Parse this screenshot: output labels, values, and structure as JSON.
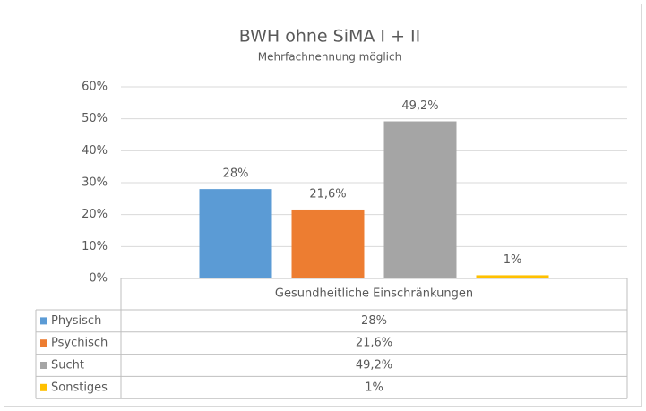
{
  "chart_data": {
    "type": "bar",
    "title": "BWH ohne SiMA I + II",
    "subtitle": "Mehrfachnennung möglich",
    "categories": [
      "Gesundheitliche Einschränkungen"
    ],
    "series": [
      {
        "name": "Physisch",
        "color": "#5b9bd5",
        "values": [
          28
        ],
        "value_labels": [
          "28%"
        ]
      },
      {
        "name": "Psychisch",
        "color": "#ed7d31",
        "values": [
          21.6
        ],
        "value_labels": [
          "21,6%"
        ]
      },
      {
        "name": "Sucht",
        "color": "#a5a5a5",
        "values": [
          49.2
        ],
        "value_labels": [
          "49,2%"
        ]
      },
      {
        "name": "Sonstiges",
        "color": "#ffc000",
        "values": [
          1
        ],
        "value_labels": [
          "1%"
        ]
      }
    ],
    "ylim": [
      0,
      60
    ],
    "yticks": [
      {
        "value": 0,
        "label": "0%"
      },
      {
        "value": 10,
        "label": "10%"
      },
      {
        "value": 20,
        "label": "20%"
      },
      {
        "value": 30,
        "label": "30%"
      },
      {
        "value": 40,
        "label": "40%"
      },
      {
        "value": 50,
        "label": "50%"
      },
      {
        "value": 60,
        "label": "60%"
      }
    ],
    "grid": true
  }
}
